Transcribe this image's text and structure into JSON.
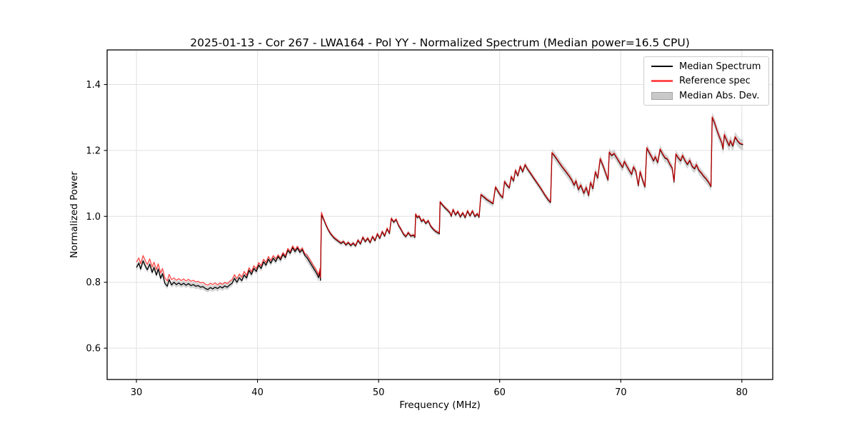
{
  "chart_data": {
    "type": "line",
    "title": "2025-01-13 - Cor 267 - LWA164 - Pol YY - Normalized Spectrum (Median power=16.5 CPU)",
    "xlabel": "Frequency (MHz)",
    "ylabel": "Normalized Power",
    "xlim": [
      27.58,
      82.55
    ],
    "ylim": [
      0.505,
      1.505
    ],
    "xticks": [
      30,
      40,
      50,
      60,
      70,
      80
    ],
    "xtick_labels": [
      "30",
      "40",
      "50",
      "60",
      "70",
      "80"
    ],
    "yticks": [
      0.6,
      0.8,
      1.0,
      1.2,
      1.4
    ],
    "ytick_labels": [
      "0.6",
      "0.8",
      "1.0",
      "1.2",
      "1.4"
    ],
    "grid": true,
    "legend_position": "upper right",
    "colors": {
      "background": "#ffffff",
      "grid": "#e0e0e0",
      "axes": "#000000",
      "band": "#aaaaaa"
    },
    "series": [
      {
        "name": "Median Spectrum",
        "color": "#000000",
        "points": [
          [
            30.0,
            0.845
          ],
          [
            30.2,
            0.858
          ],
          [
            30.35,
            0.84
          ],
          [
            30.55,
            0.865
          ],
          [
            30.75,
            0.848
          ],
          [
            30.9,
            0.838
          ],
          [
            31.1,
            0.855
          ],
          [
            31.3,
            0.83
          ],
          [
            31.45,
            0.845
          ],
          [
            31.65,
            0.822
          ],
          [
            31.8,
            0.84
          ],
          [
            32.0,
            0.812
          ],
          [
            32.15,
            0.826
          ],
          [
            32.35,
            0.797
          ],
          [
            32.55,
            0.788
          ],
          [
            32.7,
            0.808
          ],
          [
            32.9,
            0.792
          ],
          [
            33.1,
            0.8
          ],
          [
            33.3,
            0.793
          ],
          [
            33.5,
            0.798
          ],
          [
            33.7,
            0.792
          ],
          [
            33.9,
            0.797
          ],
          [
            34.1,
            0.791
          ],
          [
            34.3,
            0.796
          ],
          [
            34.5,
            0.79
          ],
          [
            34.7,
            0.793
          ],
          [
            34.9,
            0.788
          ],
          [
            35.1,
            0.79
          ],
          [
            35.3,
            0.785
          ],
          [
            35.5,
            0.787
          ],
          [
            35.7,
            0.781
          ],
          [
            35.9,
            0.778
          ],
          [
            36.1,
            0.784
          ],
          [
            36.3,
            0.78
          ],
          [
            36.5,
            0.785
          ],
          [
            36.7,
            0.781
          ],
          [
            36.9,
            0.787
          ],
          [
            37.1,
            0.783
          ],
          [
            37.3,
            0.789
          ],
          [
            37.5,
            0.785
          ],
          [
            37.7,
            0.792
          ],
          [
            37.9,
            0.797
          ],
          [
            38.1,
            0.812
          ],
          [
            38.3,
            0.8
          ],
          [
            38.5,
            0.814
          ],
          [
            38.7,
            0.805
          ],
          [
            38.9,
            0.822
          ],
          [
            39.1,
            0.813
          ],
          [
            39.3,
            0.836
          ],
          [
            39.5,
            0.824
          ],
          [
            39.7,
            0.842
          ],
          [
            39.9,
            0.833
          ],
          [
            40.1,
            0.852
          ],
          [
            40.3,
            0.842
          ],
          [
            40.5,
            0.862
          ],
          [
            40.7,
            0.852
          ],
          [
            40.9,
            0.87
          ],
          [
            41.1,
            0.858
          ],
          [
            41.3,
            0.873
          ],
          [
            41.5,
            0.863
          ],
          [
            41.7,
            0.878
          ],
          [
            41.9,
            0.868
          ],
          [
            42.1,
            0.885
          ],
          [
            42.3,
            0.875
          ],
          [
            42.5,
            0.897
          ],
          [
            42.7,
            0.888
          ],
          [
            42.9,
            0.905
          ],
          [
            43.1,
            0.893
          ],
          [
            43.3,
            0.904
          ],
          [
            43.5,
            0.891
          ],
          [
            43.7,
            0.899
          ],
          [
            43.9,
            0.882
          ],
          [
            44.1,
            0.874
          ],
          [
            44.3,
            0.862
          ],
          [
            44.5,
            0.85
          ],
          [
            44.7,
            0.838
          ],
          [
            44.9,
            0.826
          ],
          [
            45.05,
            0.814
          ],
          [
            45.15,
            0.833
          ],
          [
            45.2,
            0.806
          ],
          [
            45.28,
            1.004
          ],
          [
            45.45,
            0.992
          ],
          [
            45.65,
            0.974
          ],
          [
            45.85,
            0.958
          ],
          [
            46.05,
            0.946
          ],
          [
            46.3,
            0.935
          ],
          [
            46.6,
            0.926
          ],
          [
            46.9,
            0.918
          ],
          [
            47.1,
            0.923
          ],
          [
            47.3,
            0.913
          ],
          [
            47.5,
            0.92
          ],
          [
            47.7,
            0.911
          ],
          [
            47.9,
            0.918
          ],
          [
            48.1,
            0.91
          ],
          [
            48.3,
            0.927
          ],
          [
            48.5,
            0.916
          ],
          [
            48.7,
            0.936
          ],
          [
            48.9,
            0.923
          ],
          [
            49.1,
            0.933
          ],
          [
            49.3,
            0.92
          ],
          [
            49.5,
            0.938
          ],
          [
            49.7,
            0.926
          ],
          [
            49.9,
            0.946
          ],
          [
            50.1,
            0.933
          ],
          [
            50.3,
            0.953
          ],
          [
            50.5,
            0.94
          ],
          [
            50.7,
            0.962
          ],
          [
            50.9,
            0.948
          ],
          [
            51.05,
            0.993
          ],
          [
            51.25,
            0.982
          ],
          [
            51.45,
            0.99
          ],
          [
            51.65,
            0.972
          ],
          [
            51.85,
            0.96
          ],
          [
            52.05,
            0.946
          ],
          [
            52.25,
            0.938
          ],
          [
            52.45,
            0.95
          ],
          [
            52.65,
            0.94
          ],
          [
            52.9,
            0.942
          ],
          [
            53.0,
            0.936
          ],
          [
            53.06,
            1.006
          ],
          [
            53.2,
            0.996
          ],
          [
            53.35,
            1.0
          ],
          [
            53.55,
            0.984
          ],
          [
            53.7,
            0.99
          ],
          [
            53.9,
            0.978
          ],
          [
            54.1,
            0.986
          ],
          [
            54.3,
            0.97
          ],
          [
            54.5,
            0.961
          ],
          [
            54.7,
            0.954
          ],
          [
            54.9,
            0.95
          ],
          [
            55.02,
            0.947
          ],
          [
            55.08,
            1.043
          ],
          [
            55.3,
            1.033
          ],
          [
            55.5,
            1.025
          ],
          [
            55.7,
            1.018
          ],
          [
            55.9,
            1.01
          ],
          [
            56.0,
            1.0
          ],
          [
            56.15,
            1.02
          ],
          [
            56.35,
            1.004
          ],
          [
            56.55,
            1.014
          ],
          [
            56.75,
            0.998
          ],
          [
            56.95,
            1.01
          ],
          [
            57.15,
            0.996
          ],
          [
            57.35,
            1.016
          ],
          [
            57.55,
            1.001
          ],
          [
            57.75,
            1.016
          ],
          [
            57.95,
            0.999
          ],
          [
            58.15,
            1.007
          ],
          [
            58.3,
            0.997
          ],
          [
            58.45,
            1.065
          ],
          [
            58.7,
            1.058
          ],
          [
            58.95,
            1.05
          ],
          [
            59.2,
            1.044
          ],
          [
            59.45,
            1.038
          ],
          [
            59.65,
            1.088
          ],
          [
            59.85,
            1.076
          ],
          [
            60.05,
            1.064
          ],
          [
            60.25,
            1.056
          ],
          [
            60.4,
            1.105
          ],
          [
            60.6,
            1.094
          ],
          [
            60.8,
            1.086
          ],
          [
            60.95,
            1.12
          ],
          [
            61.15,
            1.107
          ],
          [
            61.3,
            1.139
          ],
          [
            61.5,
            1.123
          ],
          [
            61.7,
            1.151
          ],
          [
            61.9,
            1.135
          ],
          [
            62.1,
            1.156
          ],
          [
            62.3,
            1.143
          ],
          [
            62.55,
            1.13
          ],
          [
            62.8,
            1.116
          ],
          [
            63.1,
            1.1
          ],
          [
            63.4,
            1.084
          ],
          [
            63.7,
            1.066
          ],
          [
            64.0,
            1.05
          ],
          [
            64.2,
            1.042
          ],
          [
            64.32,
            1.192
          ],
          [
            64.55,
            1.182
          ],
          [
            64.85,
            1.166
          ],
          [
            65.15,
            1.15
          ],
          [
            65.45,
            1.136
          ],
          [
            65.75,
            1.121
          ],
          [
            65.95,
            1.11
          ],
          [
            66.15,
            1.094
          ],
          [
            66.3,
            1.107
          ],
          [
            66.5,
            1.081
          ],
          [
            66.7,
            1.094
          ],
          [
            66.95,
            1.07
          ],
          [
            67.15,
            1.087
          ],
          [
            67.35,
            1.063
          ],
          [
            67.5,
            1.102
          ],
          [
            67.7,
            1.084
          ],
          [
            67.9,
            1.134
          ],
          [
            68.1,
            1.116
          ],
          [
            68.3,
            1.174
          ],
          [
            68.55,
            1.152
          ],
          [
            68.8,
            1.126
          ],
          [
            68.95,
            1.11
          ],
          [
            69.05,
            1.194
          ],
          [
            69.25,
            1.184
          ],
          [
            69.45,
            1.19
          ],
          [
            69.7,
            1.175
          ],
          [
            69.95,
            1.16
          ],
          [
            70.15,
            1.148
          ],
          [
            70.3,
            1.166
          ],
          [
            70.5,
            1.152
          ],
          [
            70.7,
            1.139
          ],
          [
            70.9,
            1.127
          ],
          [
            71.05,
            1.149
          ],
          [
            71.25,
            1.136
          ],
          [
            71.45,
            1.093
          ],
          [
            71.6,
            1.135
          ],
          [
            71.8,
            1.11
          ],
          [
            72.0,
            1.089
          ],
          [
            72.15,
            1.207
          ],
          [
            72.35,
            1.193
          ],
          [
            72.55,
            1.18
          ],
          [
            72.7,
            1.168
          ],
          [
            72.85,
            1.18
          ],
          [
            73.05,
            1.163
          ],
          [
            73.25,
            1.203
          ],
          [
            73.45,
            1.189
          ],
          [
            73.65,
            1.177
          ],
          [
            73.85,
            1.173
          ],
          [
            74.05,
            1.158
          ],
          [
            74.25,
            1.146
          ],
          [
            74.4,
            1.104
          ],
          [
            74.55,
            1.188
          ],
          [
            74.75,
            1.177
          ],
          [
            74.95,
            1.168
          ],
          [
            75.1,
            1.184
          ],
          [
            75.3,
            1.169
          ],
          [
            75.5,
            1.157
          ],
          [
            75.7,
            1.169
          ],
          [
            75.9,
            1.151
          ],
          [
            76.1,
            1.144
          ],
          [
            76.25,
            1.156
          ],
          [
            76.45,
            1.139
          ],
          [
            76.65,
            1.131
          ],
          [
            76.85,
            1.121
          ],
          [
            77.05,
            1.113
          ],
          [
            77.25,
            1.103
          ],
          [
            77.45,
            1.09
          ],
          [
            77.55,
            1.3
          ],
          [
            77.75,
            1.283
          ],
          [
            77.95,
            1.26
          ],
          [
            78.15,
            1.24
          ],
          [
            78.35,
            1.222
          ],
          [
            78.45,
            1.204
          ],
          [
            78.55,
            1.247
          ],
          [
            78.75,
            1.23
          ],
          [
            78.95,
            1.214
          ],
          [
            79.05,
            1.229
          ],
          [
            79.25,
            1.213
          ],
          [
            79.45,
            1.24
          ],
          [
            79.65,
            1.228
          ],
          [
            79.85,
            1.22
          ],
          [
            80.1,
            1.217
          ]
        ]
      },
      {
        "name": "Reference spec",
        "color": "#ff0000",
        "opacity": 0.72,
        "offset_from_median": [
          [
            30.0,
            33.0,
            0.016
          ],
          [
            33.0,
            36.5,
            0.013
          ],
          [
            36.5,
            39.0,
            0.011
          ],
          [
            39.0,
            41.5,
            0.008
          ],
          [
            41.5,
            44.0,
            0.005
          ],
          [
            44.0,
            45.35,
            0.008
          ],
          [
            45.35,
            80.5,
            0.002
          ]
        ]
      }
    ],
    "mad_band": {
      "name": "Median Abs. Dev.",
      "color": "#aaaaaa",
      "opacity": 0.5,
      "halfwidth_ranges": [
        [
          30.0,
          44.0,
          0.009
        ],
        [
          44.0,
          45.35,
          0.013
        ],
        [
          45.35,
          58.3,
          0.007
        ],
        [
          58.3,
          64.25,
          0.009
        ],
        [
          64.25,
          77.45,
          0.013
        ],
        [
          77.45,
          80.5,
          0.016
        ]
      ]
    }
  },
  "legend": {
    "items": [
      {
        "label": "Median Spectrum",
        "swatch": "line",
        "color": "#000000"
      },
      {
        "label": "Reference spec",
        "swatch": "line",
        "color": "#ff4d4d"
      },
      {
        "label": "Median Abs. Dev.",
        "swatch": "patch",
        "color": "#c9c9c9",
        "border": "#a3a3a3"
      }
    ]
  }
}
